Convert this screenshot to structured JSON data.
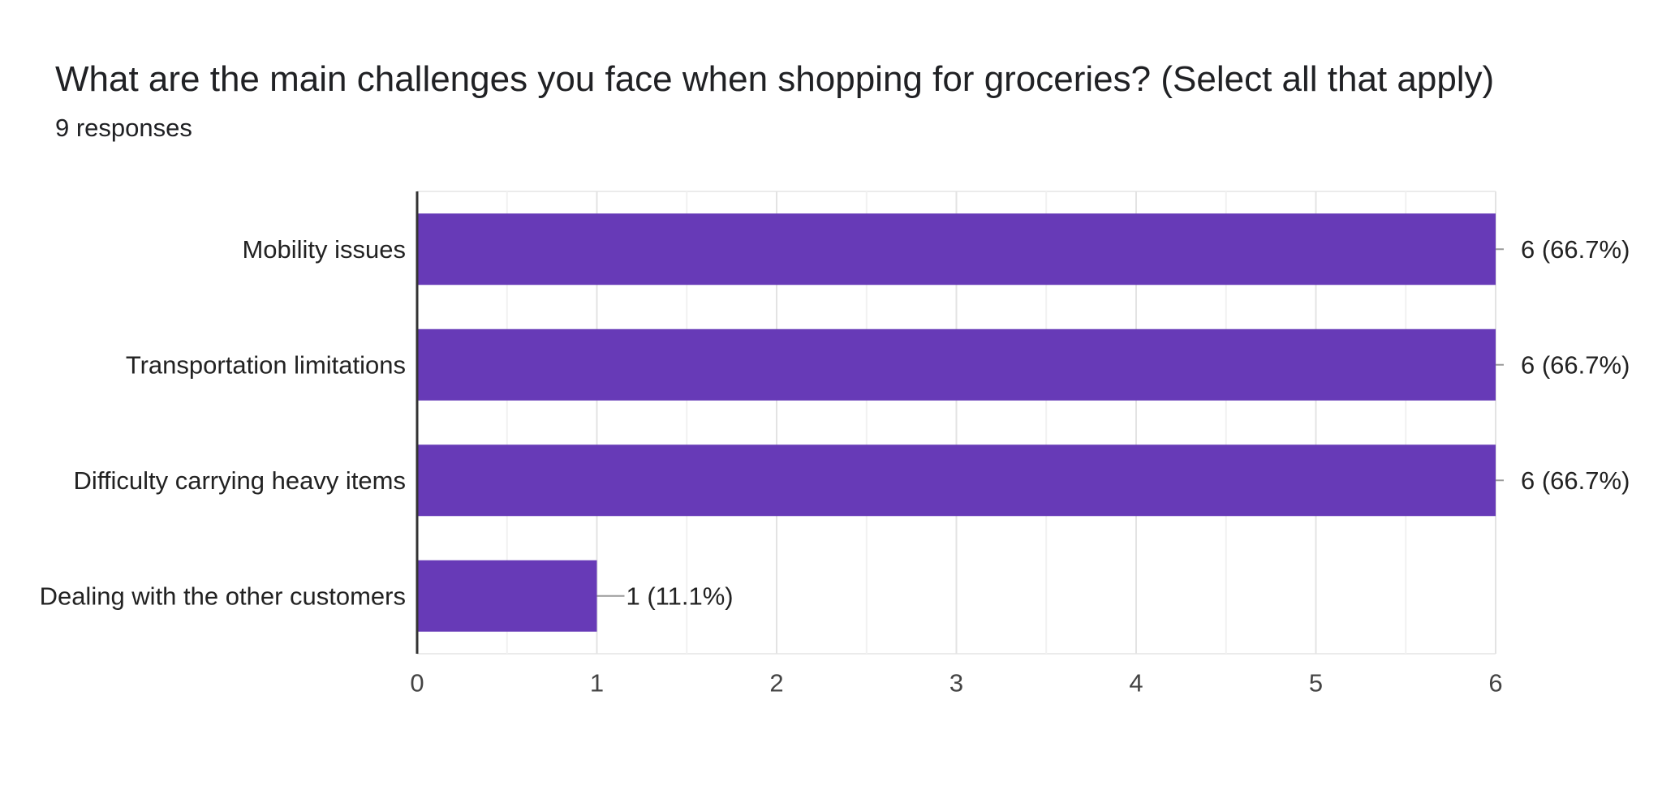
{
  "question": {
    "title": "What are the main challenges you face when shopping for groceries? (Select all that apply)",
    "responses": "9 responses"
  },
  "colors": {
    "bar": "#673ab7",
    "grid": "#ebebeb",
    "axis": "#333333",
    "leader": "#999999"
  },
  "chart_data": {
    "type": "bar",
    "orientation": "horizontal",
    "title": "What are the main challenges you face when shopping for groceries? (Select all that apply)",
    "subtitle": "9 responses",
    "categories": [
      "Mobility issues",
      "Transportation limitations",
      "Difficulty carrying heavy items",
      "Dealing with the other customers"
    ],
    "values": [
      6,
      6,
      6,
      1
    ],
    "data_labels": [
      "6 (66.7%)",
      "6 (66.7%)",
      "6 (66.7%)",
      "1 (11.1%)"
    ],
    "xlim": [
      0,
      6
    ],
    "x_ticks": [
      "0",
      "1",
      "2",
      "3",
      "4",
      "5",
      "6"
    ],
    "xlabel": "",
    "ylabel": "",
    "grid": true,
    "legend": "none"
  }
}
